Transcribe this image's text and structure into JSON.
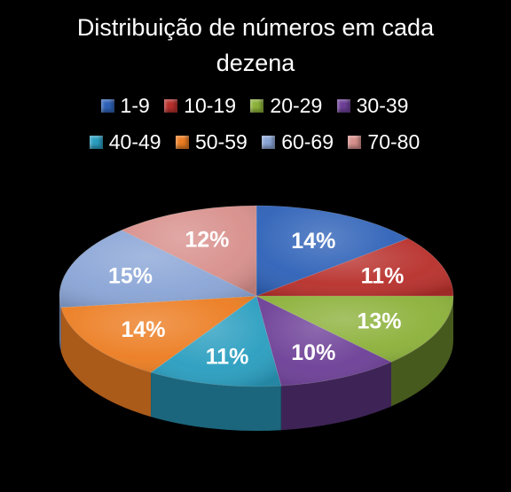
{
  "chart_data": {
    "type": "pie",
    "title_lines": [
      "Distribuição de números em cada",
      "dezena"
    ],
    "categories": [
      "1-9",
      "10-19",
      "20-29",
      "30-39",
      "40-49",
      "50-59",
      "60-69",
      "70-80"
    ],
    "values": [
      14,
      11,
      13,
      10,
      11,
      14,
      15,
      12
    ],
    "labels": [
      "14%",
      "11%",
      "13%",
      "10%",
      "11%",
      "14%",
      "15%",
      "12%"
    ],
    "colors": [
      "#2f62b8",
      "#b8302c",
      "#8cb13a",
      "#6d3f97",
      "#2a9ec0",
      "#ec7d22",
      "#8aa5d6",
      "#d8908c"
    ],
    "legend_position": "top"
  }
}
